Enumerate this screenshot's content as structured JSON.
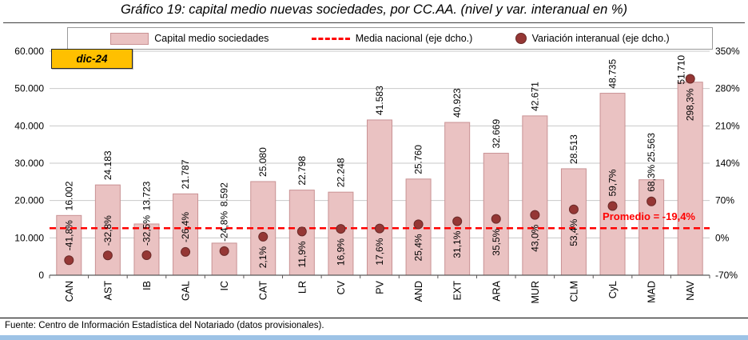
{
  "title": "Gráfico 19: capital medio nuevas sociedades, por CC.AA. (nivel y var. interanual en %)",
  "legend": {
    "bars": "Capital medio sociedades",
    "line": "Media nacional (eje dcho.)",
    "dots": "Variación interanual (eje dcho.)"
  },
  "period_badge": "dic-24",
  "promedio_label": "Promedio = -19,4%",
  "source": "Fuente: Centro de Información Estadística del Notariado (datos provisionales).",
  "colors": {
    "bar_fill": "#EAC2C2",
    "bar_border": "#C99294",
    "dot": "#953735",
    "dot_border": "#6A2A28",
    "dashed_line": "#FF0000",
    "badge_fill": "#FFC000",
    "promedio_text": "#FF0000",
    "bottom_bar": "#9DC3E6",
    "gridline": "#C9C9C9",
    "axis": "#595959"
  },
  "chart_data": {
    "type": "bar",
    "title": "Gráfico 19: capital medio nuevas sociedades, por CC.AA. (nivel y var. interanual en %)",
    "categories": [
      "CAN",
      "AST",
      "IB",
      "GAL",
      "IC",
      "CAT",
      "LR",
      "CV",
      "PV",
      "AND",
      "EXT",
      "ARA",
      "MUR",
      "CLM",
      "CyL",
      "MAD",
      "NAV"
    ],
    "series": [
      {
        "name": "Capital medio sociedades",
        "type": "bar",
        "axis": "left",
        "values": [
          16002,
          24183,
          13723,
          21787,
          8592,
          25080,
          22798,
          22248,
          41583,
          25760,
          40923,
          32669,
          42671,
          28513,
          48735,
          25563,
          51710
        ],
        "labels": [
          "16.002",
          "24.183",
          "13.723",
          "21.787",
          "8.592",
          "25.080",
          "22.798",
          "22.248",
          "41.583",
          "25.760",
          "40.923",
          "32.669",
          "42.671",
          "28.513",
          "48.735",
          "25.563",
          "51.710"
        ]
      },
      {
        "name": "Variación interanual (eje dcho.)",
        "type": "scatter",
        "axis": "right",
        "values": [
          -41.8,
          -32.8,
          -32.5,
          -26.4,
          -24.8,
          2.1,
          11.9,
          16.9,
          17.6,
          25.4,
          31.1,
          35.5,
          43.0,
          53.4,
          59.7,
          68.3,
          298.3
        ],
        "labels": [
          "-41,8%",
          "-32,8%",
          "-32,5%",
          "-26,4%",
          "-24,8%",
          "2,1%",
          "11,9%",
          "16,9%",
          "17,6%",
          "25,4%",
          "31,1%",
          "35,5%",
          "43,0%",
          "53,4%",
          "59,7%",
          "68,3%",
          "298,3%"
        ]
      }
    ],
    "reference_line": {
      "name": "Media nacional (eje dcho.)",
      "left_axis_position": 12600,
      "label": "Promedio = -19,4%"
    },
    "left_axis": {
      "min": 0,
      "max": 60000,
      "ticks": [
        "0",
        "10.000",
        "20.000",
        "30.000",
        "40.000",
        "50.000",
        "60.000"
      ]
    },
    "right_axis": {
      "min": -70,
      "max": 350,
      "ticks": [
        "-70%",
        "0%",
        "70%",
        "140%",
        "210%",
        "280%",
        "350%"
      ]
    },
    "grid": true,
    "legend_position": "top"
  }
}
